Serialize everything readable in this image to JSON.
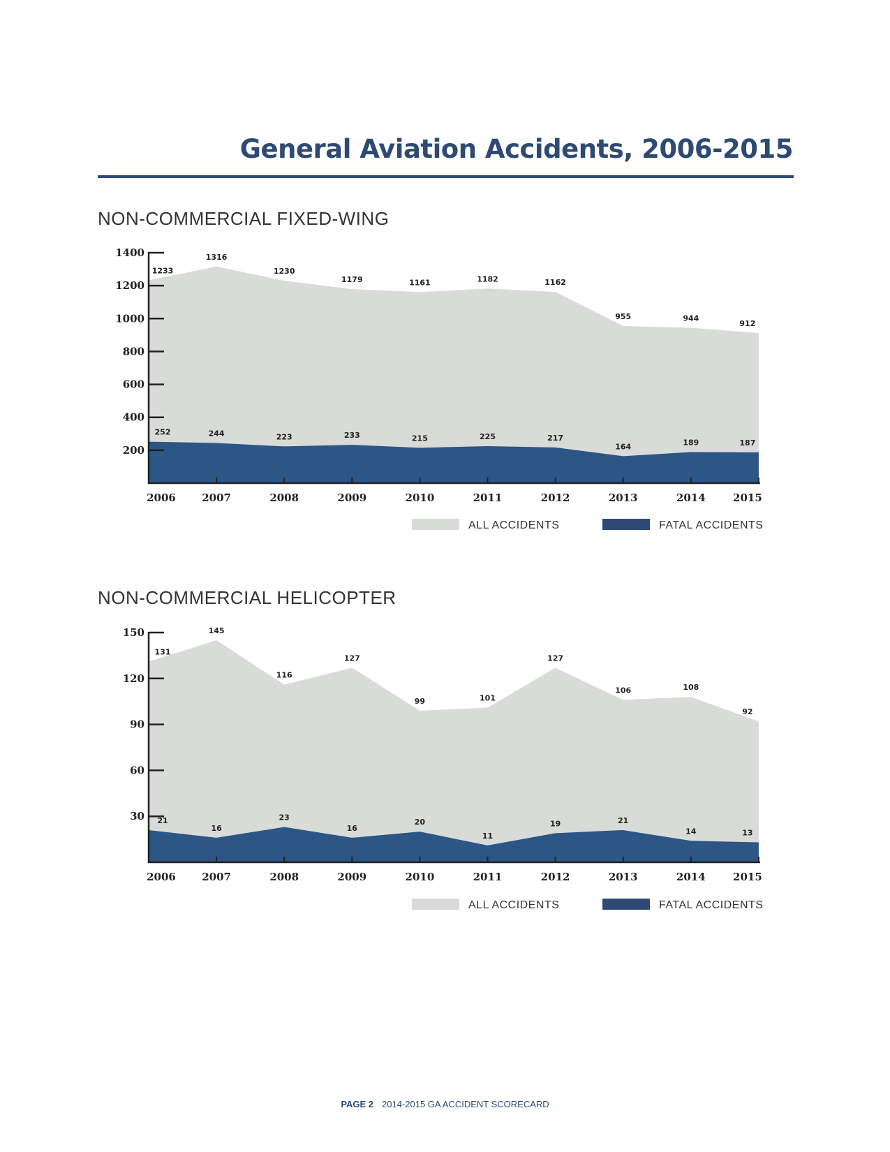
{
  "title": "General Aviation Accidents, 2006-2015",
  "footer": {
    "page": "PAGE 2",
    "text": "2014-2015 GA ACCIDENT SCORECARD"
  },
  "colors": {
    "all": "#d9dbd8",
    "fatal": "#2b5686",
    "title": "#2e4a74",
    "axis": "#222222"
  },
  "chart_data": [
    {
      "type": "area",
      "title": "NON-COMMERCIAL FIXED-WING",
      "categories": [
        "2006",
        "2007",
        "2008",
        "2009",
        "2010",
        "2011",
        "2012",
        "2013",
        "2014",
        "2015"
      ],
      "yticks": [
        200,
        400,
        600,
        800,
        1000,
        1200,
        1400
      ],
      "ylim": [
        0,
        1400
      ],
      "legend_position": "bottom-right",
      "series": [
        {
          "name": "ALL ACCIDENTS",
          "values": [
            1233,
            1316,
            1230,
            1179,
            1161,
            1182,
            1162,
            955,
            944,
            912
          ]
        },
        {
          "name": "FATAL ACCIDENTS",
          "values": [
            252,
            244,
            223,
            233,
            215,
            225,
            217,
            164,
            189,
            187
          ]
        }
      ]
    },
    {
      "type": "area",
      "title": "NON-COMMERCIAL HELICOPTER",
      "categories": [
        "2006",
        "2007",
        "2008",
        "2009",
        "2010",
        "2011",
        "2012",
        "2013",
        "2014",
        "2015"
      ],
      "yticks": [
        30,
        60,
        90,
        120,
        150
      ],
      "ylim": [
        0,
        150
      ],
      "legend_position": "bottom-right",
      "series": [
        {
          "name": "ALL ACCIDENTS",
          "values": [
            131,
            145,
            116,
            127,
            99,
            101,
            127,
            106,
            108,
            92
          ]
        },
        {
          "name": "FATAL ACCIDENTS",
          "values": [
            21,
            16,
            23,
            16,
            20,
            11,
            19,
            21,
            14,
            13
          ]
        }
      ]
    }
  ]
}
